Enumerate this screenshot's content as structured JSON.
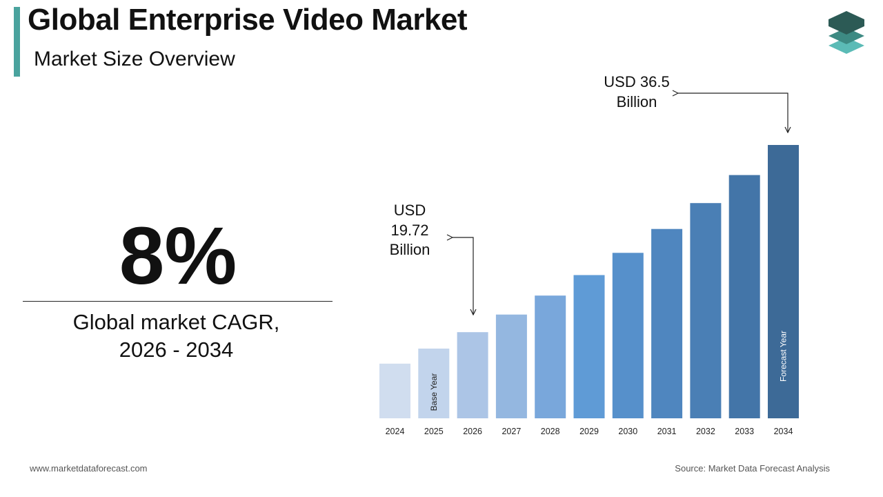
{
  "title": "Global Enterprise Video Market",
  "subtitle": "Market Size Overview",
  "cagr": {
    "value": "8%",
    "label_line1": "Global market CAGR,",
    "label_line2": "2026 - 2034"
  },
  "callouts": {
    "start": {
      "line1": "USD",
      "line2": "19.72",
      "line3": "Billion"
    },
    "end": {
      "line1": "USD 36.5",
      "line2": "Billion"
    }
  },
  "chart_data": {
    "type": "bar",
    "title": "",
    "xlabel": "",
    "ylabel": "",
    "categories": [
      "2024",
      "2025",
      "2026",
      "2027",
      "2028",
      "2029",
      "2030",
      "2031",
      "2032",
      "2033",
      "2034"
    ],
    "values": [
      16.9,
      18.25,
      19.72,
      21.3,
      23.0,
      24.84,
      26.83,
      28.97,
      31.29,
      33.8,
      36.5
    ],
    "units": "USD Billion",
    "bar_annotations": [
      {
        "category": "2025",
        "text": "Base Year"
      },
      {
        "category": "2034",
        "text": "Forecast Year"
      }
    ],
    "colors": [
      "#d0ddef",
      "#c2d4ec",
      "#acc5e6",
      "#94b7e0",
      "#79a7db",
      "#5f9bd6",
      "#5690cb",
      "#4f86bf",
      "#4a7fb5",
      "#4375a8",
      "#3d6a97"
    ],
    "grid": false,
    "legend": "none"
  },
  "footer": {
    "website": "www.marketdataforecast.com",
    "source": "Source: Market Data Forecast Analysis"
  }
}
